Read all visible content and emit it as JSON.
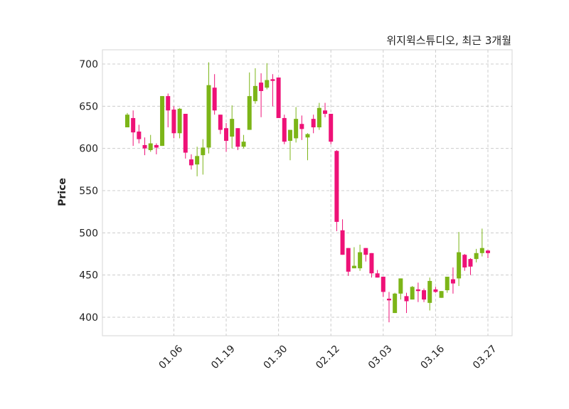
{
  "chart_data": {
    "type": "candlestick",
    "title": "위지윅스튜디오, 최근 3개월",
    "xlabel": "",
    "ylabel": "Price",
    "ylim": [
      378,
      718
    ],
    "yticks": [
      400,
      450,
      500,
      550,
      600,
      650,
      700
    ],
    "xtick_labels": [
      {
        "index": 8,
        "label": "01.06"
      },
      {
        "index": 17,
        "label": "01.19"
      },
      {
        "index": 26,
        "label": "01.30"
      },
      {
        "index": 35,
        "label": "02.12"
      },
      {
        "index": 44,
        "label": "03.03"
      },
      {
        "index": 53,
        "label": "03.16"
      },
      {
        "index": 62,
        "label": "03.27"
      }
    ],
    "grid": true,
    "up_color": "#7cb518",
    "down_color": "#ee1177",
    "ohlc": [
      [
        625,
        642,
        625,
        640
      ],
      [
        636,
        645,
        603,
        619
      ],
      [
        620,
        628,
        606,
        611
      ],
      [
        604,
        613,
        592,
        600
      ],
      [
        598,
        616,
        596,
        606
      ],
      [
        604,
        606,
        593,
        601
      ],
      [
        603,
        662,
        603,
        662
      ],
      [
        662,
        665,
        625,
        645
      ],
      [
        646,
        650,
        612,
        618
      ],
      [
        618,
        648,
        612,
        647
      ],
      [
        641,
        641,
        588,
        595
      ],
      [
        587,
        593,
        575,
        580
      ],
      [
        581,
        602,
        567,
        591
      ],
      [
        592,
        611,
        569,
        601
      ],
      [
        601,
        702,
        594,
        675
      ],
      [
        672,
        688,
        640,
        645
      ],
      [
        640,
        640,
        617,
        622
      ],
      [
        624,
        630,
        596,
        609
      ],
      [
        614,
        651,
        600,
        635
      ],
      [
        624,
        624,
        598,
        602
      ],
      [
        602,
        616,
        600,
        608
      ],
      [
        622,
        690,
        622,
        662
      ],
      [
        656,
        695,
        653,
        674
      ],
      [
        678,
        689,
        637,
        668
      ],
      [
        672,
        701,
        670,
        681
      ],
      [
        682,
        688,
        650,
        680
      ],
      [
        684,
        684,
        636,
        636
      ],
      [
        636,
        640,
        605,
        608
      ],
      [
        609,
        622,
        586,
        622
      ],
      [
        612,
        649,
        607,
        635
      ],
      [
        629,
        639,
        610,
        623
      ],
      [
        613,
        618,
        586,
        617
      ],
      [
        635,
        640,
        618,
        625
      ],
      [
        625,
        654,
        622,
        648
      ],
      [
        645,
        654,
        637,
        641
      ],
      [
        641,
        641,
        605,
        608
      ],
      [
        597,
        598,
        502,
        513
      ],
      [
        503,
        516,
        474,
        474
      ],
      [
        482,
        482,
        449,
        454
      ],
      [
        458,
        483,
        458,
        461
      ],
      [
        458,
        486,
        455,
        477
      ],
      [
        482,
        482,
        466,
        474
      ],
      [
        476,
        476,
        447,
        452
      ],
      [
        452,
        456,
        447,
        447
      ],
      [
        448,
        448,
        424,
        430
      ],
      [
        422,
        430,
        394,
        420
      ],
      [
        405,
        429,
        405,
        428
      ],
      [
        428,
        446,
        421,
        446
      ],
      [
        425,
        429,
        405,
        419
      ],
      [
        421,
        437,
        421,
        436
      ],
      [
        433,
        441,
        418,
        431
      ],
      [
        432,
        434,
        418,
        421
      ],
      [
        417,
        447,
        408,
        443
      ],
      [
        433,
        436,
        429,
        430
      ],
      [
        423,
        431,
        423,
        431
      ],
      [
        432,
        448,
        429,
        448
      ],
      [
        445,
        459,
        428,
        440
      ],
      [
        446,
        501,
        437,
        477
      ],
      [
        474,
        475,
        455,
        459
      ],
      [
        469,
        470,
        450,
        460
      ],
      [
        469,
        481,
        465,
        476
      ],
      [
        476,
        505,
        472,
        482
      ],
      [
        479,
        480,
        470,
        476
      ]
    ]
  }
}
